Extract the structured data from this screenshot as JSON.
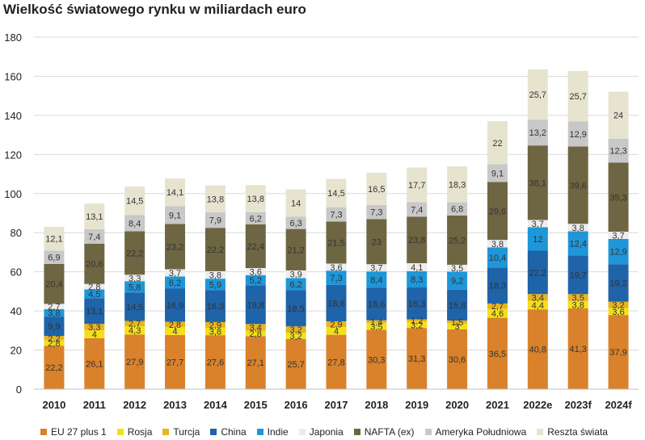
{
  "title": "Wielkość światowego rynku w miliardach euro",
  "chart_data": {
    "type": "bar",
    "stacked": true,
    "title": "Wielkość światowego rynku w miliardach euro",
    "xlabel": "",
    "ylabel": "",
    "ylim": [
      0,
      180
    ],
    "yticks": [
      "0",
      "20",
      "40",
      "60",
      "80",
      "100",
      "120",
      "140",
      "160",
      "180"
    ],
    "grid": true,
    "legend_position": "bottom",
    "categories": [
      "2010",
      "2011",
      "2012",
      "2013",
      "2014",
      "2015",
      "2016",
      "2017",
      "2018",
      "2019",
      "2020",
      "2021",
      "2022e",
      "2023f",
      "2024f"
    ],
    "series": [
      {
        "name": "EU 27 plus 1",
        "color": "#d9822b",
        "values": [
          22.2,
          26.1,
          27.9,
          27.7,
          27.6,
          27.1,
          25.7,
          27.8,
          30.3,
          31.3,
          30.6,
          36.5,
          40.8,
          41.3,
          37.9
        ],
        "labels": [
          "22,2",
          "26,1",
          "27,9",
          "27,7",
          "27,6",
          "27,1",
          "25,7",
          "27,8",
          "30,3",
          "31,3",
          "30,6",
          "36,5",
          "40,8",
          "41,3",
          "37,9"
        ]
      },
      {
        "name": "Rosja",
        "color": "#f5df1a",
        "values": [
          2.8,
          4,
          4.3,
          4,
          3.8,
          2.8,
          3.2,
          4,
          3.5,
          3.2,
          3,
          4.6,
          4.4,
          3.8,
          3.6
        ],
        "labels": [
          "2,8",
          "4",
          "4,3",
          "4",
          "3,8",
          "2,8",
          "3,2",
          "4",
          "3,5",
          "3,2",
          "3",
          "4,6",
          "4,4",
          "3,8",
          "3,6"
        ]
      },
      {
        "name": "Turcja",
        "color": "#e8b51e",
        "values": [
          2.2,
          3.3,
          2.7,
          2.8,
          2.9,
          3.4,
          3.2,
          2.9,
          1.4,
          1.2,
          1.5,
          2.7,
          3.4,
          3.5,
          3.2
        ],
        "labels": [
          "2,2",
          "3,3",
          "2,7",
          "2,8",
          "2,9",
          "3,4",
          "3,2",
          "2,9",
          "1,4",
          "1,2",
          "1,5",
          "2,7",
          "3,4",
          "3,5",
          "3,2"
        ]
      },
      {
        "name": "China",
        "color": "#1f63a8",
        "values": [
          9.9,
          13.1,
          14.5,
          16.9,
          16.3,
          19.8,
          18.5,
          18.6,
          16.6,
          16.3,
          15.8,
          18.3,
          22.2,
          19.7,
          19.2
        ],
        "labels": [
          "9,9",
          "13,1",
          "14,5",
          "16,9",
          "16,3",
          "19,8",
          "18,5",
          "18,6",
          "16,6",
          "16,3",
          "15,8",
          "18,3",
          "22,2",
          "19,7",
          "19,2"
        ]
      },
      {
        "name": "Indie",
        "color": "#1e96d8",
        "values": [
          3.8,
          4.5,
          5.8,
          6.2,
          5.9,
          5.2,
          6.2,
          7.3,
          8.4,
          8.3,
          9.2,
          10.4,
          12,
          12.4,
          12.9
        ],
        "labels": [
          "3,8",
          "4,5",
          "5,8",
          "6,2",
          "5,9",
          "5,2",
          "6,2",
          "7,3",
          "8,4",
          "8,3",
          "9,2",
          "10,4",
          "12",
          "12,4",
          "12,9"
        ]
      },
      {
        "name": "Japonia",
        "color": "#ededed",
        "values": [
          2.7,
          2.8,
          3.3,
          3.7,
          3.8,
          3.6,
          3.9,
          3.6,
          3.7,
          4.1,
          3.5,
          3.8,
          3.7,
          3.8,
          3.7
        ],
        "labels": [
          "2,7",
          "2,8",
          "3,3",
          "3,7",
          "3,8",
          "3,6",
          "3,9",
          "3,6",
          "3,7",
          "4,1",
          "3,5",
          "3,8",
          "3,7",
          "3,8",
          "3,7"
        ]
      },
      {
        "name": "NAFTA (ex)",
        "color": "#6e6642",
        "values": [
          20.4,
          20.6,
          22.2,
          23.2,
          22.2,
          22.4,
          21.2,
          21.5,
          23,
          23.8,
          25.2,
          29.6,
          38.1,
          39.6,
          35.3
        ],
        "labels": [
          "20,4",
          "20,6",
          "22,2",
          "23,2",
          "22,2",
          "22,4",
          "21,2",
          "21,5",
          "23",
          "23,8",
          "25,2",
          "29,6",
          "38,1",
          "39,6",
          "35,3"
        ]
      },
      {
        "name": "Ameryka Południowa",
        "color": "#c8c8c8",
        "values": [
          6.9,
          7.4,
          8.4,
          9.1,
          7.9,
          6.2,
          6.3,
          7.3,
          7.3,
          7.4,
          6.8,
          9.1,
          13.2,
          12.9,
          12.3
        ],
        "labels": [
          "6,9",
          "7,4",
          "8,4",
          "9,1",
          "7,9",
          "6,2",
          "6,3",
          "7,3",
          "7,3",
          "7,4",
          "6,8",
          "9,1",
          "13,2",
          "12,9",
          "12,3"
        ]
      },
      {
        "name": "Reszta świata",
        "color": "#e6e3cf",
        "values": [
          12.1,
          13.1,
          14.5,
          14.1,
          13.8,
          13.8,
          14,
          14.5,
          16.5,
          17.7,
          18.3,
          22,
          25.7,
          25.7,
          24
        ],
        "labels": [
          "12,1",
          "13,1",
          "14,5",
          "14,1",
          "13,8",
          "13,8",
          "14",
          "14,5",
          "16,5",
          "17,7",
          "18,3",
          "22",
          "25,7",
          "25,7",
          "24"
        ]
      }
    ]
  }
}
